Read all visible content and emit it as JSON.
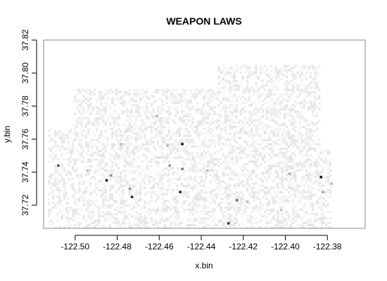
{
  "chart_data": {
    "type": "heatmap",
    "title": "WEAPON LAWS",
    "xlabel": "x.bin",
    "ylabel": "y.bin",
    "xlim": [
      -122.515,
      -122.362
    ],
    "ylim": [
      37.706,
      37.82
    ],
    "x_ticks": [
      -122.5,
      -122.48,
      -122.46,
      -122.44,
      -122.42,
      -122.4,
      -122.38
    ],
    "x_tick_labels": [
      "-122.50",
      "-122.48",
      "-122.46",
      "-122.44",
      "-122.42",
      "-122.40",
      "-122.38"
    ],
    "y_ticks": [
      37.72,
      37.74,
      37.76,
      37.78,
      37.8,
      37.82
    ],
    "y_tick_labels": [
      "37.72",
      "37.74",
      "37.76",
      "37.78",
      "37.80",
      "37.82"
    ],
    "grid": false,
    "legend": "none",
    "colors": {
      "low": "#ffffff",
      "high": "#000000"
    },
    "notable_cells": [
      {
        "x": -122.383,
        "y": 37.737,
        "value": 1.0
      },
      {
        "x": -122.449,
        "y": 37.757,
        "value": 0.95
      },
      {
        "x": -122.485,
        "y": 37.735,
        "value": 0.9
      },
      {
        "x": -122.45,
        "y": 37.728,
        "value": 0.9
      },
      {
        "x": -122.473,
        "y": 37.725,
        "value": 0.88
      },
      {
        "x": -122.427,
        "y": 37.709,
        "value": 0.8
      },
      {
        "x": -122.508,
        "y": 37.744,
        "value": 0.7
      },
      {
        "x": -122.423,
        "y": 37.723,
        "value": 0.6
      },
      {
        "x": -122.449,
        "y": 37.742,
        "value": 0.55
      },
      {
        "x": -122.455,
        "y": 37.744,
        "value": 0.45
      },
      {
        "x": -122.474,
        "y": 37.73,
        "value": 0.45
      },
      {
        "x": -122.483,
        "y": 37.738,
        "value": 0.45
      },
      {
        "x": -122.398,
        "y": 37.739,
        "value": 0.35
      },
      {
        "x": -122.382,
        "y": 37.728,
        "value": 0.35
      },
      {
        "x": -122.478,
        "y": 37.757,
        "value": 0.3
      },
      {
        "x": -122.461,
        "y": 37.774,
        "value": 0.3
      },
      {
        "x": -122.456,
        "y": 37.756,
        "value": 0.3
      },
      {
        "x": -122.494,
        "y": 37.741,
        "value": 0.28
      },
      {
        "x": -122.437,
        "y": 37.741,
        "value": 0.28
      },
      {
        "x": -122.418,
        "y": 37.722,
        "value": 0.25
      },
      {
        "x": -122.402,
        "y": 37.717,
        "value": 0.25
      },
      {
        "x": -122.378,
        "y": 37.733,
        "value": 0.3
      }
    ],
    "background_density": "light grey cells scattered across the region"
  }
}
